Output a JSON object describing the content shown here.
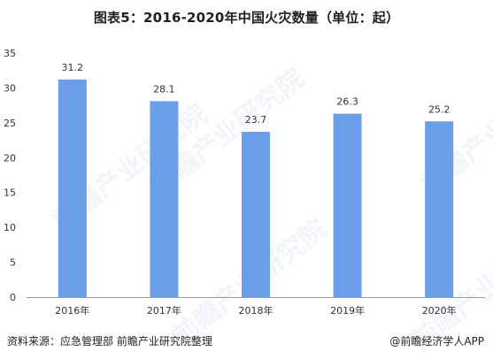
{
  "title": "图表5：2016-2020年中国火灾数量（单位：起）",
  "footer": {
    "source": "资料来源：应急管理部 前瞻产业研究院整理",
    "brand": "@前瞻经济学人APP"
  },
  "watermark": {
    "text": "前瞻产业研究院"
  },
  "colors": {
    "bar": "#6a9ee8",
    "axis": "#999999",
    "text": "#333333"
  },
  "chart_data": {
    "type": "bar",
    "title": "图表5：2016-2020年中国火灾数量（单位：起）",
    "categories": [
      "2016年",
      "2017年",
      "2018年",
      "2019年",
      "2020年"
    ],
    "values": [
      31.2,
      28.1,
      23.7,
      26.3,
      25.2
    ],
    "data_labels": [
      "31.2",
      "28.1",
      "23.7",
      "26.3",
      "25.2"
    ],
    "ylim": [
      0,
      35
    ],
    "yticks": [
      0,
      5,
      10,
      15,
      20,
      25,
      30,
      35
    ],
    "ytick_labels": [
      "0",
      "5",
      "10",
      "15",
      "20",
      "25",
      "30",
      "35"
    ],
    "xlabel": "",
    "ylabel": "",
    "grid": false,
    "legend": "none"
  }
}
